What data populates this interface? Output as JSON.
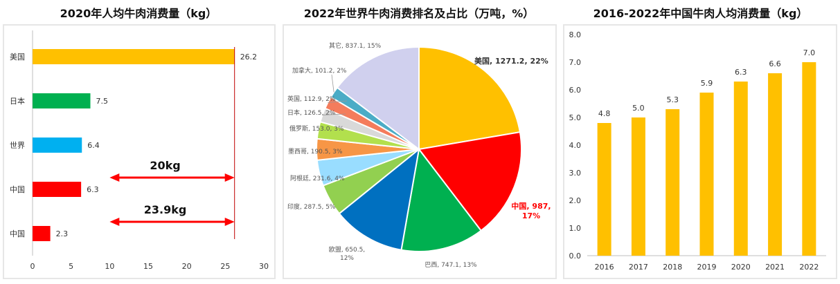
{
  "chart_data": [
    {
      "type": "bar",
      "orientation": "horizontal",
      "title": "2020年人均牛肉消费量（kg）",
      "categories": [
        "美国",
        "日本",
        "世界",
        "中国",
        "中国"
      ],
      "values": [
        26.2,
        7.5,
        6.4,
        6.3,
        2.3
      ],
      "value_labels": [
        "26.2",
        "7.5",
        "6.4",
        "6.3",
        "2.3"
      ],
      "colors": [
        "#FFC000",
        "#00B050",
        "#00B0F0",
        "#FF0000",
        "#FF0000"
      ],
      "xlim": [
        0,
        30
      ],
      "xticks": [
        "0",
        "5",
        "10",
        "15",
        "20",
        "25",
        "30"
      ],
      "grid": false,
      "reference_line": {
        "x": 26.2,
        "color": "#C00000"
      },
      "annotations": [
        {
          "text": "20kg",
          "from": 10,
          "to": 26.2,
          "row": 3,
          "color": "#FF0000"
        },
        {
          "text": "23.9kg",
          "from": 10,
          "to": 26.2,
          "row": 4,
          "color": "#FF0000"
        }
      ]
    },
    {
      "type": "pie",
      "title": "2022年世界牛肉消费排名及占比（万吨，%）",
      "labels": [
        "美国",
        "中国",
        "巴西",
        "欧盟",
        "印度",
        "阿根廷",
        "墨西哥",
        "俄罗斯",
        "日本",
        "英国",
        "加拿大",
        "其它"
      ],
      "values": [
        1271.2,
        987,
        747.1,
        650.5,
        287.5,
        231.6,
        190.5,
        153.0,
        126.5,
        112.9,
        101.2,
        837.1
      ],
      "percents": [
        22,
        17,
        13,
        12,
        5,
        4,
        3,
        3,
        2,
        2,
        2,
        15
      ],
      "slice_labels": [
        "美国, 1271.2, 22%",
        "中国, 987, 17%",
        "巴西, 747.1, 13%",
        "欧盟, 650.5, 12%",
        "印度, 287.5, 5%",
        "阿根廷, 231.6, 4%",
        "墨西哥, 190.5, 3%",
        "俄罗斯, 153.0, 3%",
        "日本, 126.5, 2%",
        "英国, 112.9, 2%",
        "加拿大, 101.2, 2%",
        "其它, 837.1, 15%"
      ],
      "colors": [
        "#FFC000",
        "#FF0000",
        "#00B050",
        "#0070C0",
        "#92D050",
        "#99DDFF",
        "#F79646",
        "#B2E04D",
        "#D9D9D9",
        "#F47C5C",
        "#4BACC6",
        "#D0D0EE"
      ],
      "highlight_colors": [
        "#333333",
        "#FF0000"
      ]
    },
    {
      "type": "bar",
      "title": "2016-2022年中国牛肉人均消费量（kg）",
      "categories": [
        "2016",
        "2017",
        "2018",
        "2019",
        "2020",
        "2021",
        "2022"
      ],
      "values": [
        4.8,
        5.0,
        5.3,
        5.9,
        6.3,
        6.6,
        7.0
      ],
      "value_labels": [
        "4.8",
        "5.0",
        "5.3",
        "5.9",
        "6.3",
        "6.6",
        "7.0"
      ],
      "color": "#FFC000",
      "ylim": [
        0,
        8
      ],
      "yticks": [
        "0.0",
        "1.0",
        "2.0",
        "3.0",
        "4.0",
        "5.0",
        "6.0",
        "7.0",
        "8.0"
      ],
      "grid": false
    }
  ]
}
